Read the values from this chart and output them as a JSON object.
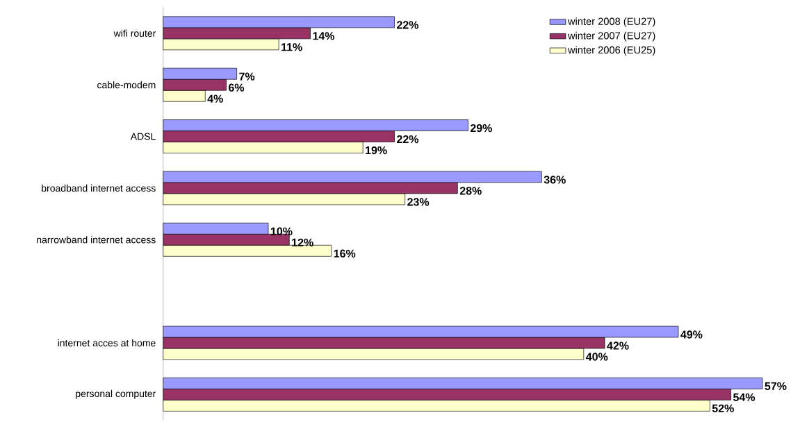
{
  "chart_data": {
    "type": "bar",
    "orientation": "horizontal",
    "categories": [
      "wifi router",
      "cable-modem",
      "ADSL",
      "broadband internet access",
      "narrowband internet access",
      null,
      "internet acces at home",
      "personal computer"
    ],
    "series": [
      {
        "name": "winter 2008 (EU27)",
        "color": "#9999ff",
        "values": [
          22,
          7,
          29,
          36,
          10,
          null,
          49,
          57
        ],
        "value_labels": [
          "22%",
          "7%",
          "29%",
          "36%",
          "10%",
          null,
          "49%",
          "57%"
        ]
      },
      {
        "name": "winter 2007 (EU27)",
        "color": "#993366",
        "values": [
          14,
          6,
          22,
          28,
          12,
          null,
          42,
          54
        ],
        "value_labels": [
          "14%",
          "6%",
          "22%",
          "28%",
          "12%",
          null,
          "42%",
          "54%"
        ]
      },
      {
        "name": "winter 2006 (EU25)",
        "color": "#ffffcc",
        "values": [
          11,
          4,
          19,
          23,
          16,
          null,
          40,
          52
        ],
        "value_labels": [
          "11%",
          "4%",
          "19%",
          "23%",
          "16%",
          null,
          "40%",
          "52%"
        ]
      }
    ],
    "legend": "top right"
  }
}
